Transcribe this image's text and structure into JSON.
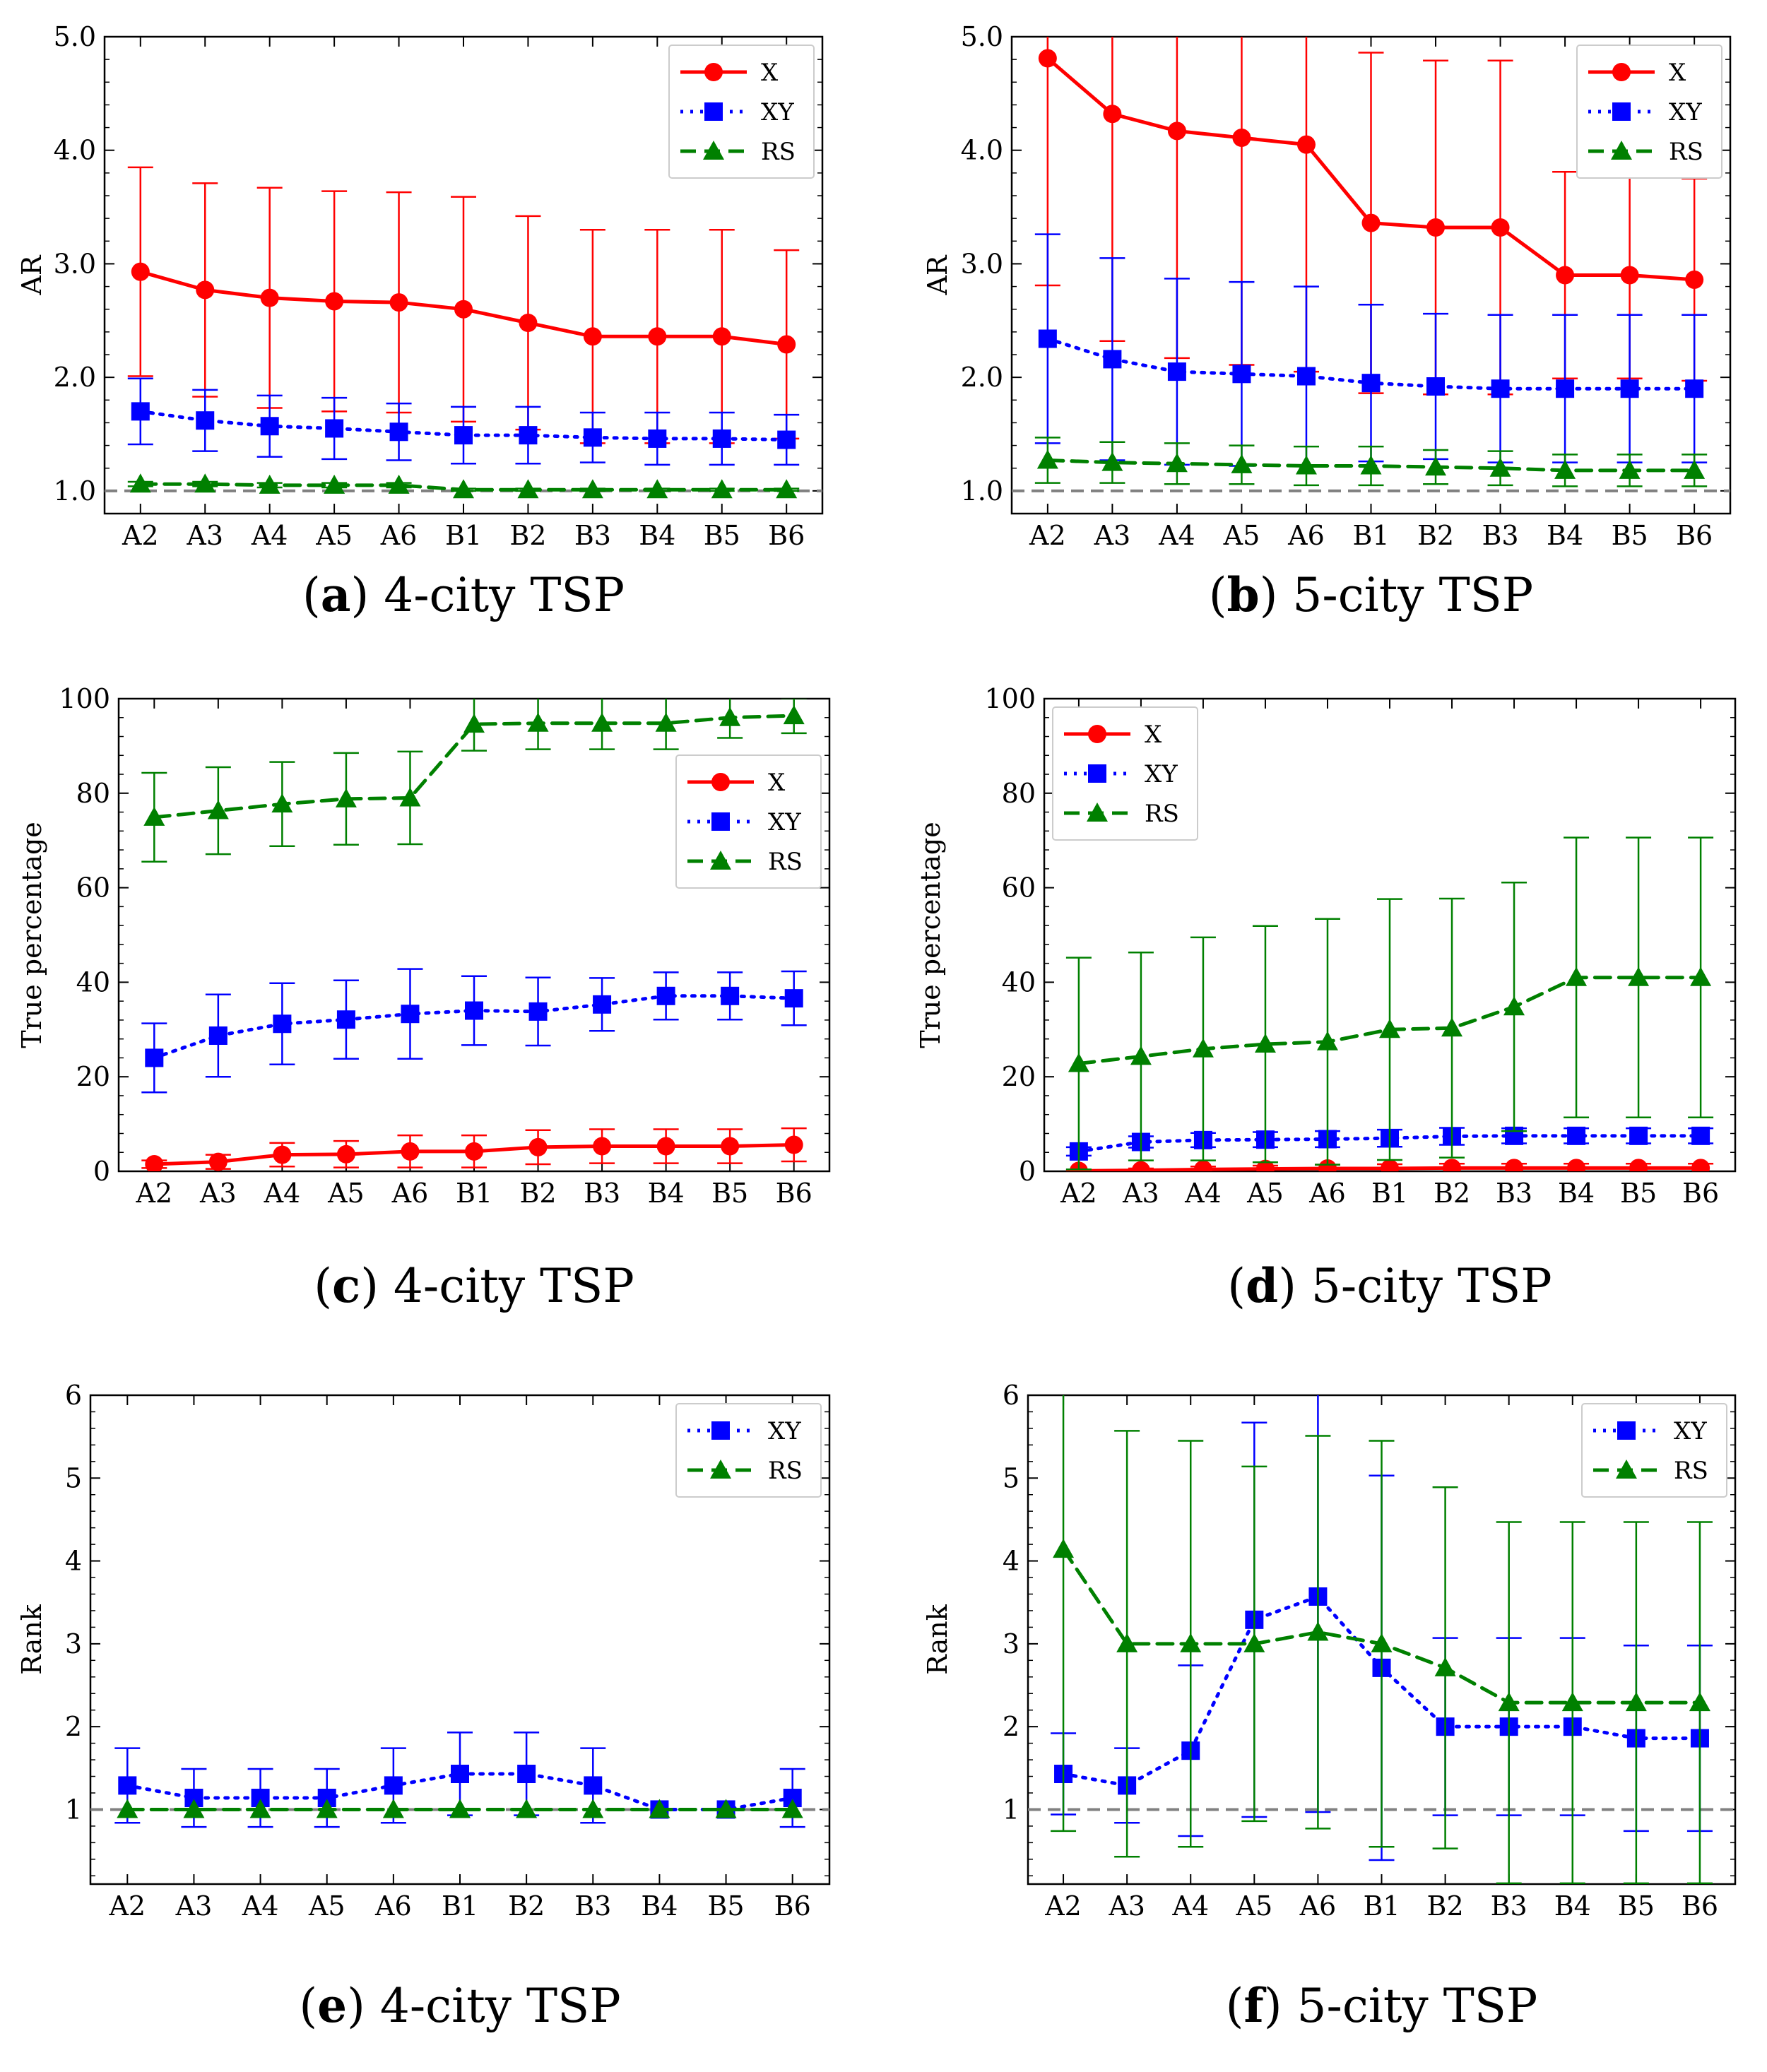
{
  "chart_data": [
    {
      "id": "a",
      "type": "line",
      "caption_letter": "a",
      "caption_text": "4-city TSP",
      "ylabel": "AR",
      "ylim": [
        0.8,
        5.0
      ],
      "yticks": [
        "1.0",
        "2.0",
        "3.0",
        "4.0",
        "5.0"
      ],
      "ytick_values": [
        1.0,
        2.0,
        3.0,
        4.0,
        5.0
      ],
      "categories": [
        "A2",
        "A3",
        "A4",
        "A5",
        "A6",
        "B1",
        "B2",
        "B3",
        "B4",
        "B5",
        "B6"
      ],
      "reference_line": 1.0,
      "legend_position": "top-right",
      "series": [
        {
          "name": "X",
          "color": "#ff0000",
          "marker": "circle",
          "line": "solid",
          "values": [
            2.93,
            2.77,
            2.7,
            2.67,
            2.66,
            2.6,
            2.48,
            2.36,
            2.36,
            2.36,
            2.29
          ],
          "errors": [
            0.92,
            0.94,
            0.97,
            0.97,
            0.97,
            0.99,
            0.94,
            0.94,
            0.94,
            0.94,
            0.83
          ]
        },
        {
          "name": "XY",
          "color": "#0000ff",
          "marker": "square",
          "line": "dotted",
          "values": [
            1.7,
            1.62,
            1.57,
            1.55,
            1.52,
            1.49,
            1.49,
            1.47,
            1.46,
            1.46,
            1.45
          ],
          "errors": [
            0.29,
            0.27,
            0.27,
            0.27,
            0.25,
            0.25,
            0.25,
            0.22,
            0.23,
            0.23,
            0.22
          ]
        },
        {
          "name": "RS",
          "color": "#008000",
          "marker": "triangle",
          "line": "dashed",
          "values": [
            1.06,
            1.06,
            1.05,
            1.05,
            1.05,
            1.01,
            1.01,
            1.01,
            1.01,
            1.01,
            1.01
          ],
          "errors": [
            0.02,
            0.02,
            0.02,
            0.02,
            0.02,
            0.01,
            0.01,
            0.01,
            0.01,
            0.01,
            0.01
          ]
        }
      ]
    },
    {
      "id": "b",
      "type": "line",
      "caption_letter": "b",
      "caption_text": "5-city TSP",
      "ylabel": "AR",
      "ylim": [
        0.8,
        5.0
      ],
      "yticks": [
        "1.0",
        "2.0",
        "3.0",
        "4.0",
        "5.0"
      ],
      "ytick_values": [
        1.0,
        2.0,
        3.0,
        4.0,
        5.0
      ],
      "categories": [
        "A2",
        "A3",
        "A4",
        "A5",
        "A6",
        "B1",
        "B2",
        "B3",
        "B4",
        "B5",
        "B6"
      ],
      "reference_line": 1.0,
      "legend_position": "top-right",
      "series": [
        {
          "name": "X",
          "color": "#ff0000",
          "marker": "circle",
          "line": "solid",
          "values": [
            4.81,
            4.32,
            4.17,
            4.11,
            4.05,
            3.36,
            3.32,
            3.32,
            2.9,
            2.9,
            2.86
          ],
          "errors": [
            2.0,
            2.0,
            2.0,
            2.0,
            2.0,
            1.5,
            1.47,
            1.47,
            0.91,
            0.91,
            0.89
          ]
        },
        {
          "name": "XY",
          "color": "#0000ff",
          "marker": "square",
          "line": "dotted",
          "values": [
            2.34,
            2.16,
            2.05,
            2.03,
            2.01,
            1.95,
            1.92,
            1.9,
            1.9,
            1.9,
            1.9
          ],
          "errors": [
            0.92,
            0.89,
            0.82,
            0.81,
            0.79,
            0.69,
            0.64,
            0.65,
            0.65,
            0.65,
            0.65
          ]
        },
        {
          "name": "RS",
          "color": "#008000",
          "marker": "triangle",
          "line": "dashed",
          "values": [
            1.27,
            1.25,
            1.24,
            1.23,
            1.22,
            1.22,
            1.21,
            1.2,
            1.18,
            1.18,
            1.18
          ],
          "errors": [
            0.2,
            0.18,
            0.18,
            0.17,
            0.17,
            0.17,
            0.15,
            0.15,
            0.14,
            0.14,
            0.14
          ]
        }
      ]
    },
    {
      "id": "c",
      "type": "line",
      "caption_letter": "c",
      "caption_text": "4-city TSP",
      "ylabel": "True percentage",
      "ylim": [
        0,
        100
      ],
      "yticks": [
        "0",
        "20",
        "40",
        "60",
        "80",
        "100"
      ],
      "ytick_values": [
        0,
        20,
        40,
        60,
        80,
        100
      ],
      "categories": [
        "A2",
        "A3",
        "A4",
        "A5",
        "A6",
        "B1",
        "B2",
        "B3",
        "B4",
        "B5",
        "B6"
      ],
      "reference_line": null,
      "legend_position": "center-right",
      "series": [
        {
          "name": "X",
          "color": "#ff0000",
          "marker": "circle",
          "line": "solid",
          "values": [
            1.5,
            2.0,
            3.5,
            3.6,
            4.2,
            4.2,
            5.1,
            5.3,
            5.3,
            5.3,
            5.6
          ],
          "errors": [
            0.8,
            1.5,
            2.5,
            2.8,
            3.4,
            3.4,
            3.6,
            3.6,
            3.6,
            3.6,
            3.5
          ]
        },
        {
          "name": "XY",
          "color": "#0000ff",
          "marker": "square",
          "line": "dotted",
          "values": [
            24.0,
            28.7,
            31.2,
            32.1,
            33.3,
            34.0,
            33.8,
            35.3,
            37.1,
            37.1,
            36.6
          ],
          "errors": [
            7.3,
            8.7,
            8.6,
            8.3,
            9.5,
            7.3,
            7.2,
            5.6,
            5.0,
            5.0,
            5.7
          ]
        },
        {
          "name": "RS",
          "color": "#008000",
          "marker": "triangle",
          "line": "dashed",
          "values": [
            74.9,
            76.3,
            77.7,
            78.8,
            79.0,
            94.6,
            94.8,
            94.8,
            94.8,
            96.0,
            96.4
          ],
          "errors": [
            9.4,
            9.2,
            8.9,
            9.7,
            9.8,
            5.6,
            5.5,
            5.5,
            5.5,
            4.3,
            3.7
          ]
        }
      ]
    },
    {
      "id": "d",
      "type": "line",
      "caption_letter": "d",
      "caption_text": "5-city TSP",
      "ylabel": "True percentage",
      "ylim": [
        0,
        100
      ],
      "yticks": [
        "0",
        "20",
        "40",
        "60",
        "80",
        "100"
      ],
      "ytick_values": [
        0,
        20,
        40,
        60,
        80,
        100
      ],
      "categories": [
        "A2",
        "A3",
        "A4",
        "A5",
        "A6",
        "B1",
        "B2",
        "B3",
        "B4",
        "B5",
        "B6"
      ],
      "reference_line": null,
      "legend_position": "top-left",
      "series": [
        {
          "name": "X",
          "color": "#ff0000",
          "marker": "circle",
          "line": "solid",
          "values": [
            0.1,
            0.2,
            0.4,
            0.5,
            0.6,
            0.6,
            0.7,
            0.7,
            0.7,
            0.7,
            0.7
          ],
          "errors": [
            0.2,
            0.4,
            0.6,
            0.7,
            0.8,
            0.9,
            0.9,
            0.9,
            0.9,
            0.9,
            0.9
          ]
        },
        {
          "name": "XY",
          "color": "#0000ff",
          "marker": "square",
          "line": "dotted",
          "values": [
            4.2,
            6.2,
            6.6,
            6.7,
            6.8,
            7.0,
            7.4,
            7.5,
            7.5,
            7.5,
            7.5
          ],
          "errors": [
            0.9,
            1.2,
            1.5,
            1.6,
            1.7,
            1.8,
            1.8,
            1.6,
            1.6,
            1.6,
            1.6
          ]
        },
        {
          "name": "RS",
          "color": "#008000",
          "marker": "triangle",
          "line": "dashed",
          "values": [
            22.8,
            24.3,
            25.9,
            26.9,
            27.4,
            30.0,
            30.3,
            34.8,
            41.0,
            41.0,
            41.0
          ],
          "errors": [
            22.4,
            22.0,
            23.6,
            25.0,
            26.0,
            27.6,
            27.4,
            26.3,
            29.6,
            29.6,
            29.6
          ]
        }
      ]
    },
    {
      "id": "e",
      "type": "line",
      "caption_letter": "e",
      "caption_text": "4-city TSP",
      "ylabel": "Rank",
      "ylim": [
        0.1,
        6.0
      ],
      "yticks": [
        "1",
        "2",
        "3",
        "4",
        "5",
        "6"
      ],
      "ytick_values": [
        1,
        2,
        3,
        4,
        5,
        6
      ],
      "categories": [
        "A2",
        "A3",
        "A4",
        "A5",
        "A6",
        "B1",
        "B2",
        "B3",
        "B4",
        "B5",
        "B6"
      ],
      "reference_line": 1.0,
      "legend_position": "top-right",
      "series": [
        {
          "name": "XY",
          "color": "#0000ff",
          "marker": "square",
          "line": "dotted",
          "values": [
            1.29,
            1.14,
            1.14,
            1.14,
            1.29,
            1.43,
            1.43,
            1.29,
            1.0,
            1.0,
            1.14
          ],
          "errors": [
            0.45,
            0.35,
            0.35,
            0.35,
            0.45,
            0.5,
            0.5,
            0.45,
            0.0,
            0.0,
            0.35
          ]
        },
        {
          "name": "RS",
          "color": "#008000",
          "marker": "triangle",
          "line": "dashed",
          "values": [
            1.0,
            1.0,
            1.0,
            1.0,
            1.0,
            1.0,
            1.0,
            1.0,
            1.0,
            1.0,
            1.0
          ],
          "errors": [
            0.0,
            0.0,
            0.0,
            0.0,
            0.0,
            0.0,
            0.0,
            0.0,
            0.0,
            0.0,
            0.0
          ]
        }
      ]
    },
    {
      "id": "f",
      "type": "line",
      "caption_letter": "f",
      "caption_text": "5-city TSP",
      "ylabel": "Rank",
      "ylim": [
        0.1,
        6.0
      ],
      "yticks": [
        "1",
        "2",
        "3",
        "4",
        "5",
        "6"
      ],
      "ytick_values": [
        1,
        2,
        3,
        4,
        5,
        6
      ],
      "categories": [
        "A2",
        "A3",
        "A4",
        "A5",
        "A6",
        "B1",
        "B2",
        "B3",
        "B4",
        "B5",
        "B6"
      ],
      "reference_line": 1.0,
      "legend_position": "top-right",
      "series": [
        {
          "name": "XY",
          "color": "#0000ff",
          "marker": "square",
          "line": "dotted",
          "values": [
            1.43,
            1.29,
            1.71,
            3.29,
            3.57,
            2.71,
            2.0,
            2.0,
            2.0,
            1.86,
            1.86
          ],
          "errors": [
            0.49,
            0.45,
            1.03,
            2.38,
            2.6,
            2.32,
            1.07,
            1.07,
            1.07,
            1.12,
            1.12
          ]
        },
        {
          "name": "RS",
          "color": "#008000",
          "marker": "triangle",
          "line": "dashed",
          "values": [
            4.14,
            3.0,
            3.0,
            3.0,
            3.14,
            3.0,
            2.71,
            2.29,
            2.29,
            2.29,
            2.29
          ],
          "errors": [
            3.4,
            2.57,
            2.45,
            2.14,
            2.37,
            2.45,
            2.18,
            2.18,
            2.18,
            2.18,
            2.18
          ]
        }
      ]
    }
  ]
}
